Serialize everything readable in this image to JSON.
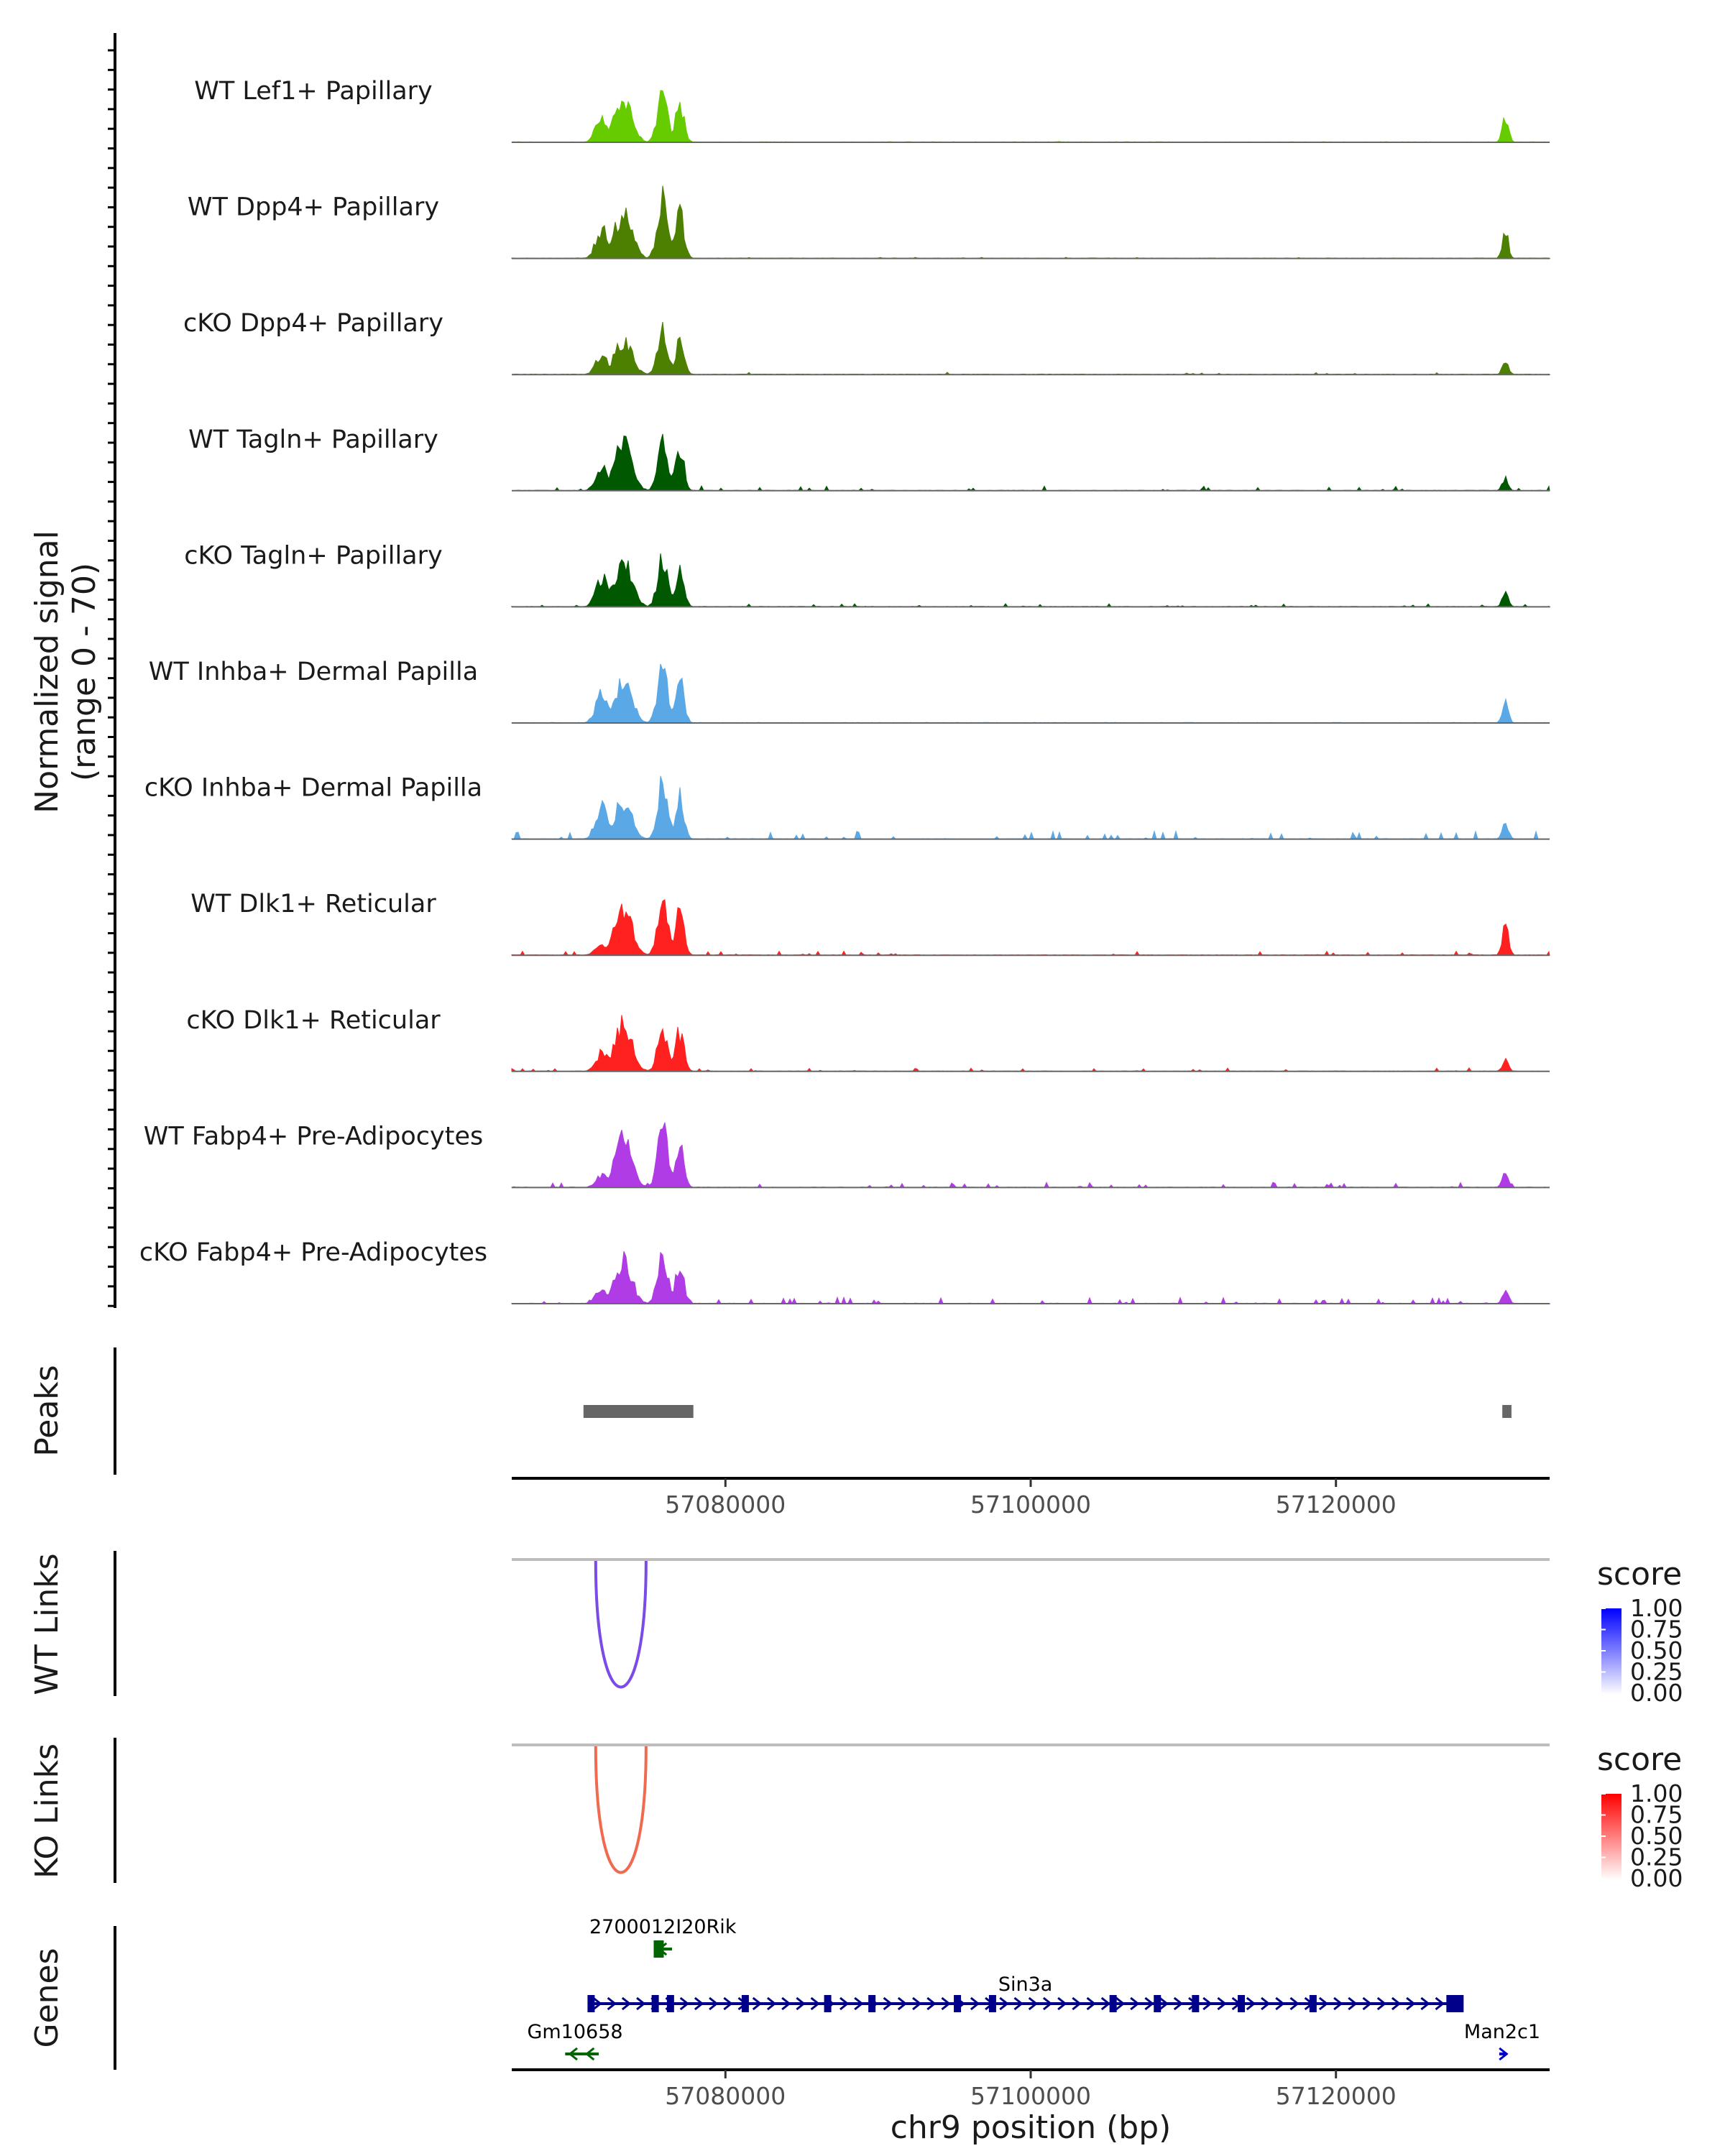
{
  "chart_data": {
    "type": "genome-browser-coverage",
    "chromosome": "chr9",
    "x_axis_label": "chr9 position (bp)",
    "x_range": [
      57066000,
      57134000
    ],
    "x_ticks": [
      57080000,
      57100000,
      57120000
    ],
    "x_tick_labels": [
      "57080000",
      "57100000",
      "57120000"
    ],
    "coverage_ylabel_line1": "Normalized signal",
    "coverage_ylabel_line2": "(range 0 - 70)",
    "y_range": [
      0,
      70
    ],
    "tracks": [
      {
        "name": "WT Lef1+ Papillary",
        "color": "#66cc00",
        "peaks": [
          {
            "center": 57071900,
            "height": 25
          },
          {
            "center": 57073300,
            "height": 42
          },
          {
            "center": 57075900,
            "height": 52
          },
          {
            "center": 57077000,
            "height": 38
          },
          {
            "center": 57131100,
            "height": 24
          }
        ],
        "noise": 0.2
      },
      {
        "name": "WT Dpp4+ Papillary",
        "color": "#4d8000",
        "peaks": [
          {
            "center": 57071900,
            "height": 28
          },
          {
            "center": 57073300,
            "height": 44
          },
          {
            "center": 57075900,
            "height": 64
          },
          {
            "center": 57077000,
            "height": 44
          },
          {
            "center": 57131100,
            "height": 25
          }
        ],
        "noise": 0.3
      },
      {
        "name": "cKO Dpp4+ Papillary",
        "color": "#4d8000",
        "peaks": [
          {
            "center": 57071900,
            "height": 18
          },
          {
            "center": 57073300,
            "height": 33
          },
          {
            "center": 57075900,
            "height": 40
          },
          {
            "center": 57077000,
            "height": 30
          },
          {
            "center": 57131100,
            "height": 14
          }
        ],
        "noise": 0.6
      },
      {
        "name": "WT Tagln+ Papillary",
        "color": "#005900",
        "peaks": [
          {
            "center": 57071900,
            "height": 22
          },
          {
            "center": 57073300,
            "height": 44
          },
          {
            "center": 57075900,
            "height": 48
          },
          {
            "center": 57077000,
            "height": 40
          },
          {
            "center": 57131100,
            "height": 12
          }
        ],
        "noise": 1.2
      },
      {
        "name": "cKO Tagln+ Papillary",
        "color": "#005900",
        "peaks": [
          {
            "center": 57071900,
            "height": 28
          },
          {
            "center": 57073300,
            "height": 44
          },
          {
            "center": 57075900,
            "height": 45
          },
          {
            "center": 57077000,
            "height": 35
          },
          {
            "center": 57131100,
            "height": 14
          }
        ],
        "noise": 0.8
      },
      {
        "name": "WT Inhba+ Dermal Papilla",
        "color": "#5aa8e6",
        "peaks": [
          {
            "center": 57071900,
            "height": 27
          },
          {
            "center": 57073300,
            "height": 40
          },
          {
            "center": 57075900,
            "height": 50
          },
          {
            "center": 57077000,
            "height": 40
          },
          {
            "center": 57131100,
            "height": 19
          }
        ],
        "noise": 0.2
      },
      {
        "name": "cKO Inhba+ Dermal Papilla",
        "color": "#5aa8e6",
        "peaks": [
          {
            "center": 57071900,
            "height": 33
          },
          {
            "center": 57073300,
            "height": 35
          },
          {
            "center": 57075900,
            "height": 55
          },
          {
            "center": 57077000,
            "height": 40
          },
          {
            "center": 57131100,
            "height": 16
          }
        ],
        "noise": 2.0
      },
      {
        "name": "WT Dlk1+ Reticular",
        "color": "#ff2020",
        "peaks": [
          {
            "center": 57071900,
            "height": 12
          },
          {
            "center": 57073300,
            "height": 45
          },
          {
            "center": 57075900,
            "height": 50
          },
          {
            "center": 57077000,
            "height": 42
          },
          {
            "center": 57131100,
            "height": 32
          }
        ],
        "noise": 1.0
      },
      {
        "name": "cKO Dlk1+ Reticular",
        "color": "#ff2020",
        "peaks": [
          {
            "center": 57071900,
            "height": 18
          },
          {
            "center": 57073300,
            "height": 46
          },
          {
            "center": 57075900,
            "height": 42
          },
          {
            "center": 57077000,
            "height": 38
          },
          {
            "center": 57131100,
            "height": 10
          }
        ],
        "noise": 0.9
      },
      {
        "name": "WT Fabp4+ Pre-Adipocytes",
        "color": "#b03ce6",
        "peaks": [
          {
            "center": 57071900,
            "height": 12
          },
          {
            "center": 57073300,
            "height": 45
          },
          {
            "center": 57075900,
            "height": 56
          },
          {
            "center": 57077000,
            "height": 40
          },
          {
            "center": 57131100,
            "height": 16
          }
        ],
        "noise": 1.3
      },
      {
        "name": "cKO Fabp4+ Pre-Adipocytes",
        "color": "#b03ce6",
        "peaks": [
          {
            "center": 57071900,
            "height": 14
          },
          {
            "center": 57073300,
            "height": 40
          },
          {
            "center": 57075900,
            "height": 48
          },
          {
            "center": 57077000,
            "height": 35
          },
          {
            "center": 57131100,
            "height": 14
          }
        ],
        "noise": 1.6
      }
    ],
    "peaks_track": {
      "label": "Peaks",
      "color": "#666666",
      "regions": [
        [
          57070700,
          57077900
        ],
        [
          57130900,
          57131500
        ]
      ]
    },
    "wt_links": {
      "label": "WT Links",
      "color": "#7a4be6",
      "links": [
        {
          "start": 57071500,
          "end": 57074800,
          "score": 0.75
        }
      ],
      "legend_title": "score",
      "legend_ticks": [
        "1.00",
        "0.75",
        "0.50",
        "0.25",
        "0.00"
      ],
      "legend_low": "#ffffff",
      "legend_high": "#0000ff"
    },
    "ko_links": {
      "label": "KO Links",
      "color": "#f06a50",
      "links": [
        {
          "start": 57071500,
          "end": 57074800,
          "score": 0.75
        }
      ],
      "legend_title": "score",
      "legend_ticks": [
        "1.00",
        "0.75",
        "0.50",
        "0.25",
        "0.00"
      ],
      "legend_low": "#ffffff",
      "legend_high": "#ff0000"
    },
    "genes_track": {
      "label": "Genes",
      "genes": [
        {
          "name": "2700012I20Rik",
          "start": 57075300,
          "end": 57076500,
          "strand": "-",
          "color": "#006400",
          "row": 0
        },
        {
          "name": "Sin3a",
          "start": 57071100,
          "end": 57128200,
          "strand": "+",
          "color": "#00008b",
          "row": 1
        },
        {
          "name": "Gm10658",
          "start": 57069500,
          "end": 57071700,
          "strand": "-",
          "color": "#006400",
          "row": 2
        },
        {
          "name": "Man2c1",
          "start": 57130700,
          "end": 57131200,
          "strand": "+",
          "color": "#0000cd",
          "row": 2
        }
      ],
      "sin3a_exons": [
        57071200,
        57075400,
        57076400,
        57081300,
        57086700,
        57089600,
        57095200,
        57097500,
        57105400,
        57108300,
        57110800,
        57113800,
        57118500,
        57127800
      ]
    }
  }
}
